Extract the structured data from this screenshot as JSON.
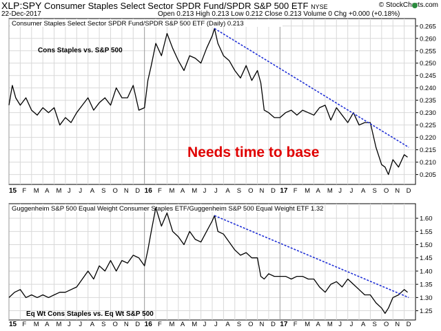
{
  "header": {
    "symbol": "XLP:SPY",
    "description": "Consumer Staples Select Sector SPDR Fund/SPDR S&P 500 ETF",
    "exchange": "NYSE",
    "date": "22-Dec-2017",
    "ohlc": "Open 0.213  High 0.213  Low 0.212  Close 0.213  Volume 0  Chg +0.000 (+0.18%)",
    "brand": "© StockCharts.com"
  },
  "colors": {
    "price_line": "#000000",
    "trendline": "#1f2fd6",
    "annotation": "#e00000",
    "grid": "#d8d8d8",
    "brand_icon": "#2b8a3e"
  },
  "chart_data": [
    {
      "type": "line",
      "panel_label": "Consumer Staples Select Sector SPDR Fund/SPDR S&P 500 ETF (Daily) 0.213",
      "chart_text": "Cons Staples vs. S&P 500",
      "annotation": "Needs time to base",
      "x_ticks": [
        "15",
        "F",
        "M",
        "A",
        "M",
        "J",
        "J",
        "A",
        "S",
        "O",
        "N",
        "D",
        "16",
        "F",
        "M",
        "A",
        "M",
        "J",
        "J",
        "A",
        "S",
        "O",
        "N",
        "D",
        "17",
        "F",
        "M",
        "A",
        "M",
        "J",
        "J",
        "A",
        "S",
        "O",
        "N",
        "D"
      ],
      "ylim": [
        0.201,
        0.268
      ],
      "yticks": [
        "0.265",
        "0.260",
        "0.255",
        "0.250",
        "0.245",
        "0.240",
        "0.235",
        "0.230",
        "0.225",
        "0.220",
        "0.215",
        "0.210",
        "0.205"
      ],
      "grid": true,
      "series": [
        {
          "x": [
            0,
            0.3,
            0.6,
            1,
            1.5,
            2,
            2.5,
            3,
            3.5,
            4,
            4.5,
            5,
            5.5,
            6,
            6.5,
            7,
            7.5,
            8,
            8.5,
            9,
            9.5,
            10,
            10.5,
            11,
            11.5,
            12,
            12.3,
            12.6,
            13,
            13.5,
            14,
            14.5,
            15,
            15.5,
            16,
            16.5,
            17,
            17.5,
            18,
            18.2,
            18.5,
            19,
            19.5,
            20,
            20.5,
            21,
            21.5,
            22,
            22.3,
            22.6,
            23,
            23.5,
            24,
            24.5,
            25,
            25.5,
            26,
            26.5,
            27,
            27.5,
            28,
            28.5,
            29,
            29.5,
            30,
            30.5,
            31,
            31.5,
            32,
            32.5,
            33,
            33.3,
            33.6,
            34,
            34.5,
            35,
            35.3
          ],
          "values": [
            0.233,
            0.241,
            0.236,
            0.233,
            0.236,
            0.231,
            0.229,
            0.232,
            0.23,
            0.232,
            0.225,
            0.228,
            0.226,
            0.23,
            0.233,
            0.236,
            0.231,
            0.234,
            0.236,
            0.233,
            0.24,
            0.236,
            0.236,
            0.241,
            0.231,
            0.232,
            0.243,
            0.249,
            0.258,
            0.253,
            0.262,
            0.256,
            0.251,
            0.247,
            0.253,
            0.252,
            0.25,
            0.256,
            0.261,
            0.264,
            0.258,
            0.253,
            0.251,
            0.247,
            0.244,
            0.249,
            0.243,
            0.247,
            0.242,
            0.231,
            0.23,
            0.228,
            0.228,
            0.23,
            0.231,
            0.229,
            0.231,
            0.23,
            0.229,
            0.232,
            0.233,
            0.227,
            0.232,
            0.229,
            0.226,
            0.23,
            0.225,
            0.226,
            0.226,
            0.216,
            0.209,
            0.208,
            0.205,
            0.211,
            0.208,
            0.213,
            0.212
          ]
        }
      ],
      "trendline": {
        "x": [
          18.2,
          35.4
        ],
        "values": [
          0.264,
          0.216
        ]
      }
    },
    {
      "type": "line",
      "panel_label": "Guggenheim S&P 500 Equal Weight Consumer Staples ETF/Guggenheim S&P 500 Equal Weight ETF 1.32",
      "chart_text": "Eq Wt Cons Staples vs. Eq Wt S&P 500",
      "x_ticks": [
        "15",
        "F",
        "M",
        "A",
        "M",
        "J",
        "J",
        "A",
        "S",
        "O",
        "N",
        "D",
        "16",
        "F",
        "M",
        "A",
        "M",
        "J",
        "J",
        "A",
        "S",
        "O",
        "N",
        "D",
        "17",
        "F",
        "M",
        "A",
        "M",
        "J",
        "J",
        "A",
        "S",
        "O",
        "N",
        "D"
      ],
      "ylim": [
        1.215,
        1.655
      ],
      "yticks": [
        "1.60",
        "1.55",
        "1.50",
        "1.45",
        "1.40",
        "1.35",
        "1.30",
        "1.25"
      ],
      "grid": true,
      "series": [
        {
          "x": [
            0,
            0.5,
            1,
            1.5,
            2,
            2.5,
            3,
            3.5,
            4,
            4.5,
            5,
            5.5,
            6,
            6.5,
            7,
            7.5,
            8,
            8.5,
            9,
            9.5,
            10,
            10.5,
            11,
            11.5,
            12,
            12.3,
            12.6,
            13,
            13.5,
            14,
            14.5,
            15,
            15.5,
            16,
            16.5,
            17,
            17.5,
            18,
            18.2,
            18.5,
            19,
            19.5,
            20,
            20.5,
            21,
            21.5,
            22,
            22.3,
            22.6,
            23,
            23.5,
            24,
            24.5,
            25,
            25.5,
            26,
            26.5,
            27,
            27.5,
            28,
            28.5,
            29,
            29.5,
            30,
            30.5,
            31,
            31.5,
            32,
            32.5,
            33,
            33.3,
            33.6,
            34,
            34.5,
            35,
            35.3
          ],
          "values": [
            1.3,
            1.32,
            1.33,
            1.3,
            1.31,
            1.3,
            1.31,
            1.3,
            1.31,
            1.32,
            1.32,
            1.33,
            1.34,
            1.37,
            1.4,
            1.37,
            1.42,
            1.4,
            1.44,
            1.4,
            1.44,
            1.43,
            1.46,
            1.45,
            1.42,
            1.48,
            1.55,
            1.64,
            1.57,
            1.62,
            1.55,
            1.53,
            1.5,
            1.55,
            1.52,
            1.51,
            1.55,
            1.59,
            1.61,
            1.55,
            1.54,
            1.51,
            1.48,
            1.46,
            1.47,
            1.45,
            1.45,
            1.38,
            1.37,
            1.39,
            1.38,
            1.38,
            1.38,
            1.37,
            1.38,
            1.38,
            1.37,
            1.37,
            1.34,
            1.32,
            1.35,
            1.36,
            1.34,
            1.37,
            1.35,
            1.33,
            1.31,
            1.31,
            1.28,
            1.26,
            1.24,
            1.26,
            1.3,
            1.31,
            1.33,
            1.32
          ]
        }
      ],
      "trendline": {
        "x": [
          18.2,
          35.4
        ],
        "values": [
          1.61,
          1.3
        ]
      }
    }
  ]
}
